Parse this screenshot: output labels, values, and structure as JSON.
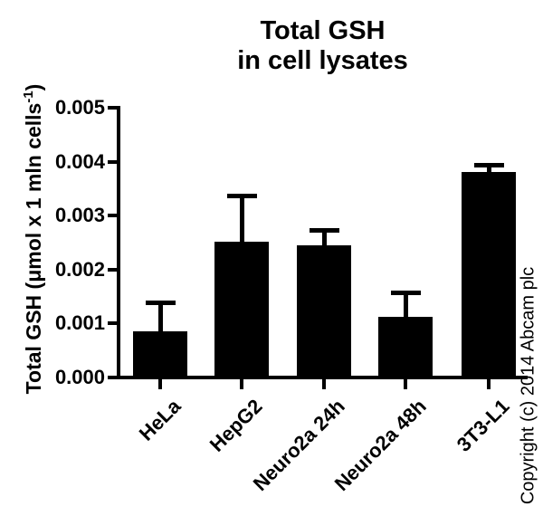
{
  "copyright": "Copyright (c) 2014 Abcam plc",
  "colors": {
    "bar": "#000000",
    "axis": "#000000",
    "text": "#000000",
    "background": "#ffffff"
  },
  "chart_data": {
    "type": "bar",
    "title": "Total GSH in cell lysates",
    "title_lines": [
      "Total GSH",
      "in cell lysates"
    ],
    "ylabel": "Total GSH (μmol x 1 mln cells-1)",
    "ylabel_parts": {
      "text": "Total GSH (μmol x 1 mln cells",
      "superscript": "-1",
      "suffix": ")"
    },
    "xlabel": "",
    "categories": [
      "HeLa",
      "HepG2",
      "Neuro2a 24h",
      "Neuro2a 48h",
      "3T3-L1"
    ],
    "values": [
      0.00085,
      0.00252,
      0.00245,
      0.00112,
      0.00381
    ],
    "errors_plus": [
      0.00055,
      0.00085,
      0.00028,
      0.00046,
      0.00013
    ],
    "error_direction": "up",
    "ylim": [
      0,
      0.005
    ],
    "ytick_values": [
      0,
      0.001,
      0.002,
      0.003,
      0.004,
      0.005
    ],
    "ytick_labels": [
      "0.000",
      "0.001",
      "0.002",
      "0.003",
      "0.004",
      "0.005"
    ],
    "grid": false,
    "legend": false,
    "bar_color": "#000000"
  }
}
